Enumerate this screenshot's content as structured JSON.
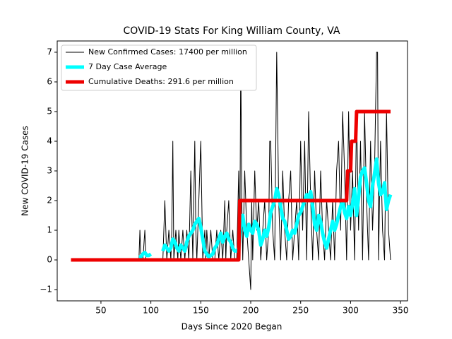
{
  "chart_data": {
    "type": "line",
    "title": "COVID-19 Stats For King William County, VA",
    "xlabel": "Days Since 2020 Began",
    "ylabel": "New COVID-19 Cases",
    "xlim": [
      6.2,
      357
    ],
    "ylim": [
      -1.38,
      7.38
    ],
    "xticks": [
      50,
      100,
      150,
      200,
      250,
      300,
      350
    ],
    "yticks": [
      {
        "value": -1,
        "label": "−1"
      },
      0,
      1,
      2,
      3,
      4,
      5,
      6,
      7
    ],
    "legend": "upper left",
    "series": [
      {
        "name": "New Confirmed Cases: 17400 per million",
        "color": "#000000",
        "width": 1,
        "x": [
          20,
          85,
          88,
          89,
          90,
          92,
          94,
          95,
          96,
          98,
          100,
          105,
          110,
          112,
          113,
          114,
          116,
          118,
          120,
          121,
          122,
          123,
          125,
          127,
          128,
          130,
          132,
          134,
          136,
          138,
          140,
          142,
          144,
          145,
          146,
          148,
          150,
          152,
          154,
          155,
          156,
          158,
          160,
          162,
          164,
          166,
          168,
          170,
          172,
          174,
          175,
          176,
          178,
          180,
          182,
          184,
          186,
          188,
          189,
          190,
          191,
          192,
          194,
          196,
          198,
          200,
          201,
          202,
          204,
          206,
          208,
          210,
          212,
          214,
          216,
          218,
          219,
          220,
          222,
          224,
          226,
          228,
          230,
          232,
          234,
          236,
          238,
          240,
          242,
          244,
          246,
          248,
          250,
          252,
          254,
          256,
          258,
          260,
          262,
          264,
          266,
          268,
          270,
          272,
          274,
          276,
          278,
          280,
          282,
          284,
          286,
          288,
          290,
          292,
          294,
          296,
          298,
          300,
          302,
          304,
          306,
          308,
          310,
          312,
          314,
          316,
          318,
          320,
          322,
          324,
          326,
          327,
          328,
          330,
          332,
          334,
          336,
          338,
          340
        ],
        "values": [
          0,
          0,
          0,
          1,
          0,
          0,
          1,
          0,
          0,
          0,
          0,
          0,
          0,
          0,
          1,
          2,
          0,
          1,
          0,
          1,
          4,
          0,
          1,
          0,
          1,
          0,
          1,
          0,
          1,
          0,
          3,
          0,
          4,
          1,
          0,
          2,
          4,
          0,
          1,
          0,
          1,
          0,
          1,
          0,
          0,
          1,
          0,
          1,
          0,
          2,
          0,
          1,
          2,
          0,
          1,
          0,
          0,
          3,
          0,
          7,
          2,
          0,
          3,
          1,
          0,
          -1,
          2,
          0,
          3,
          1,
          2,
          0,
          1,
          2,
          0,
          1,
          4,
          4,
          1,
          0,
          7,
          2,
          0,
          3,
          1,
          0,
          2,
          3,
          0,
          1,
          2,
          0,
          4,
          1,
          4,
          0,
          5,
          2,
          0,
          3,
          1,
          0,
          3,
          1,
          0,
          2,
          1,
          0,
          2,
          0,
          3,
          4,
          1,
          5,
          3,
          0,
          5,
          1,
          3,
          0,
          5,
          1,
          4,
          0,
          5,
          2,
          0,
          4,
          1,
          3,
          7,
          7,
          0,
          4,
          1,
          0,
          5,
          1,
          0
        ]
      },
      {
        "name": "7 Day Case Average",
        "color": "#00ffff",
        "width": 5,
        "x": [
          88,
          90,
          92,
          94,
          96,
          98,
          100,
          105,
          112,
          114,
          116,
          118,
          120,
          122,
          124,
          126,
          128,
          130,
          132,
          134,
          136,
          138,
          140,
          142,
          144,
          146,
          148,
          150,
          152,
          154,
          156,
          158,
          160,
          162,
          164,
          166,
          168,
          170,
          172,
          174,
          176,
          178,
          180,
          182,
          184,
          186,
          188,
          190,
          192,
          194,
          196,
          198,
          200,
          202,
          204,
          206,
          208,
          210,
          212,
          214,
          216,
          218,
          220,
          222,
          224,
          226,
          228,
          230,
          232,
          234,
          236,
          238,
          240,
          242,
          244,
          246,
          248,
          250,
          252,
          254,
          256,
          258,
          260,
          262,
          264,
          266,
          268,
          270,
          272,
          274,
          276,
          278,
          280,
          282,
          284,
          286,
          288,
          290,
          292,
          294,
          296,
          298,
          300,
          302,
          304,
          306,
          308,
          310,
          312,
          314,
          316,
          318,
          320,
          322,
          324,
          326,
          328,
          330,
          332,
          334,
          336,
          338,
          340
        ],
        "values": [
          0.1,
          0.1,
          0.2,
          0.25,
          0.15,
          0.15,
          0.2,
          null,
          0.3,
          0.5,
          0.4,
          0.3,
          0.4,
          0.7,
          0.6,
          0.4,
          0.3,
          0.5,
          0.4,
          0.3,
          0.6,
          0.8,
          0.9,
          1.0,
          1.2,
          1.3,
          1.4,
          1.1,
          0.7,
          0.3,
          0.2,
          0.1,
          0.15,
          0.2,
          0.4,
          0.5,
          0.7,
          0.9,
          0.6,
          0.8,
          0.9,
          0.7,
          0.6,
          0.4,
          0.3,
          0.3,
          0.4,
          1.2,
          1.5,
          1.0,
          0.8,
          1.2,
          1.0,
          0.9,
          1.3,
          1.2,
          1.0,
          0.5,
          0.7,
          1.0,
          0.8,
          1.1,
          1.6,
          1.8,
          2.0,
          2.4,
          2.2,
          1.8,
          1.4,
          1.3,
          1.0,
          0.7,
          0.8,
          1.0,
          0.9,
          1.2,
          1.5,
          1.6,
          1.8,
          2.0,
          2.2,
          2.1,
          2.3,
          1.8,
          1.2,
          1.0,
          1.5,
          1.3,
          0.9,
          0.6,
          0.4,
          0.7,
          1.0,
          1.3,
          1.0,
          1.2,
          1.5,
          1.8,
          2.0,
          1.6,
          1.4,
          1.8,
          1.5,
          1.9,
          2.4,
          1.5,
          2.1,
          2.8,
          3.0,
          3.1,
          2.6,
          2.0,
          1.8,
          2.5,
          2.9,
          3.4,
          2.6,
          2.2,
          2.3,
          2.6,
          1.7,
          2.0,
          2.2
        ]
      },
      {
        "name": "Cumulative Deaths: 291.6 per million",
        "color": "#ee0000",
        "width": 5,
        "x": [
          20,
          188,
          189,
          296,
          297,
          300,
          301,
          305,
          306,
          340
        ],
        "values": [
          0,
          0,
          2,
          2,
          3,
          3,
          4,
          4,
          5,
          5
        ]
      }
    ]
  }
}
